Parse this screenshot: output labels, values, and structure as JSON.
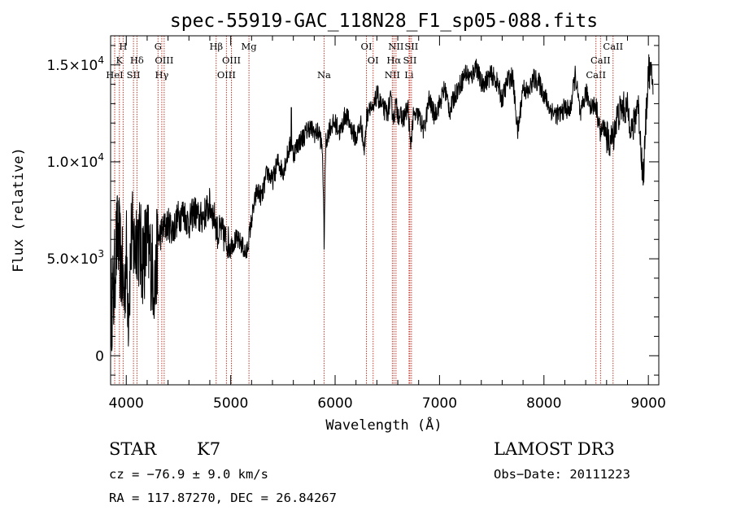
{
  "chart_data": {
    "type": "line",
    "title": "spec-55919-GAC_118N28_F1_sp05-088.fits",
    "xlabel": "Wavelength (Å)",
    "ylabel": "Flux (relative)",
    "xlim": [
      3850,
      9100
    ],
    "ylim": [
      -1500,
      16500
    ],
    "x_ticks": [
      4000,
      5000,
      6000,
      7000,
      8000,
      9000
    ],
    "x_tick_labels": [
      "4000",
      "5000",
      "6000",
      "7000",
      "8000",
      "9000"
    ],
    "y_ticks": [
      {
        "value": 0,
        "label": "0"
      },
      {
        "value": 5000,
        "label": "5.0×10",
        "exp": "3"
      },
      {
        "value": 10000,
        "label": "1.0×10",
        "exp": "4"
      },
      {
        "value": 15000,
        "label": "1.5×10",
        "exp": "4"
      }
    ],
    "grid": false,
    "series": [
      {
        "name": "flux",
        "x": [
          3850,
          3880,
          3900,
          3920,
          3950,
          3980,
          4000,
          4020,
          4050,
          4080,
          4100,
          4150,
          4200,
          4250,
          4280,
          4300,
          4350,
          4400,
          4450,
          4500,
          4550,
          4600,
          4650,
          4700,
          4750,
          4800,
          4850,
          4880,
          4900,
          4950,
          5000,
          5050,
          5100,
          5150,
          5200,
          5250,
          5300,
          5350,
          5400,
          5450,
          5500,
          5550,
          5580,
          5600,
          5650,
          5700,
          5750,
          5800,
          5850,
          5880,
          5895,
          5910,
          5950,
          6000,
          6050,
          6100,
          6150,
          6200,
          6250,
          6280,
          6300,
          6330,
          6360,
          6400,
          6450,
          6500,
          6530,
          6563,
          6580,
          6600,
          6650,
          6700,
          6720,
          6750,
          6800,
          6850,
          6900,
          6950,
          7000,
          7050,
          7100,
          7150,
          7200,
          7250,
          7300,
          7350,
          7400,
          7450,
          7500,
          7550,
          7600,
          7650,
          7700,
          7750,
          7800,
          7850,
          7900,
          7950,
          8000,
          8050,
          8100,
          8150,
          8200,
          8250,
          8300,
          8350,
          8400,
          8450,
          8500,
          8540,
          8580,
          8620,
          8662,
          8700,
          8750,
          8800,
          8850,
          8900,
          8950,
          9000,
          9050
        ],
        "y": [
          2500,
          3200,
          5500,
          6200,
          4800,
          3000,
          5500,
          2500,
          6200,
          5500,
          6500,
          5000,
          5800,
          4500,
          3500,
          6000,
          6500,
          6800,
          6500,
          7200,
          7400,
          6800,
          7500,
          7000,
          7300,
          7800,
          7000,
          6200,
          6500,
          6000,
          5700,
          6000,
          5800,
          5200,
          7000,
          8500,
          8200,
          9500,
          9000,
          10000,
          9500,
          10500,
          11000,
          10400,
          11000,
          11300,
          11800,
          11500,
          11500,
          10500,
          5800,
          11000,
          11800,
          12000,
          11500,
          12500,
          11800,
          11200,
          12000,
          10500,
          12200,
          13000,
          12500,
          13500,
          12800,
          12500,
          13200,
          12200,
          13000,
          12500,
          12200,
          12800,
          10800,
          12300,
          12400,
          11600,
          13200,
          12400,
          13000,
          13800,
          12600,
          13500,
          14000,
          14600,
          14300,
          15000,
          14000,
          14200,
          14500,
          14100,
          13200,
          14200,
          14400,
          11500,
          13900,
          13500,
          14300,
          14100,
          13500,
          12800,
          12500,
          12400,
          12800,
          12600,
          14500,
          12300,
          13600,
          12900,
          12900,
          11500,
          11800,
          10900,
          11300,
          12300,
          12800,
          12700,
          11500,
          13200,
          9000,
          14800,
          14000
        ]
      }
    ],
    "line_markers": [
      {
        "wavelength": 3889,
        "label": "HeI",
        "row": 3
      },
      {
        "wavelength": 3934,
        "label": "K",
        "row": 2
      },
      {
        "wavelength": 3970,
        "label": "H",
        "row": 1
      },
      {
        "wavelength": 4069,
        "label": "SII",
        "row": 3
      },
      {
        "wavelength": 4102,
        "label": "Hδ",
        "row": 2
      },
      {
        "wavelength": 4304,
        "label": "G",
        "row": 1
      },
      {
        "wavelength": 4340,
        "label": "Hγ",
        "row": 3
      },
      {
        "wavelength": 4363,
        "label": "OIII",
        "row": 2
      },
      {
        "wavelength": 4861,
        "label": "Hβ",
        "row": 1
      },
      {
        "wavelength": 4959,
        "label": "OIII",
        "row": 3
      },
      {
        "wavelength": 5007,
        "label": "OIII",
        "row": 2
      },
      {
        "wavelength": 5175,
        "label": "Mg",
        "row": 1
      },
      {
        "wavelength": 5894,
        "label": "Na",
        "row": 3
      },
      {
        "wavelength": 6300,
        "label": "OI",
        "row": 1
      },
      {
        "wavelength": 6364,
        "label": "OI",
        "row": 2
      },
      {
        "wavelength": 6548,
        "label": "NII",
        "row": 3
      },
      {
        "wavelength": 6563,
        "label": "Hα",
        "row": 2
      },
      {
        "wavelength": 6583,
        "label": "NII",
        "row": 1
      },
      {
        "wavelength": 6708,
        "label": "Li",
        "row": 3
      },
      {
        "wavelength": 6716,
        "label": "SII",
        "row": 2
      },
      {
        "wavelength": 6731,
        "label": "SII",
        "row": 1
      },
      {
        "wavelength": 8498,
        "label": "CaII",
        "row": 3
      },
      {
        "wavelength": 8542,
        "label": "CaII",
        "row": 2
      },
      {
        "wavelength": 8662,
        "label": "CaII",
        "row": 1
      }
    ]
  },
  "info": {
    "object_type": "STAR",
    "subclass": "K7",
    "survey": "LAMOST DR3",
    "redshift_line": "cz = −76.9 ± 9.0 km/s",
    "obs_date_line": "Obs−Date: 20111223",
    "coords_line": "RA = 117.87270, DEC =  26.84267"
  },
  "colors": {
    "axis": "#000000",
    "spectrum": "#000000",
    "marker_line": "#c0392b",
    "background": "#ffffff"
  }
}
